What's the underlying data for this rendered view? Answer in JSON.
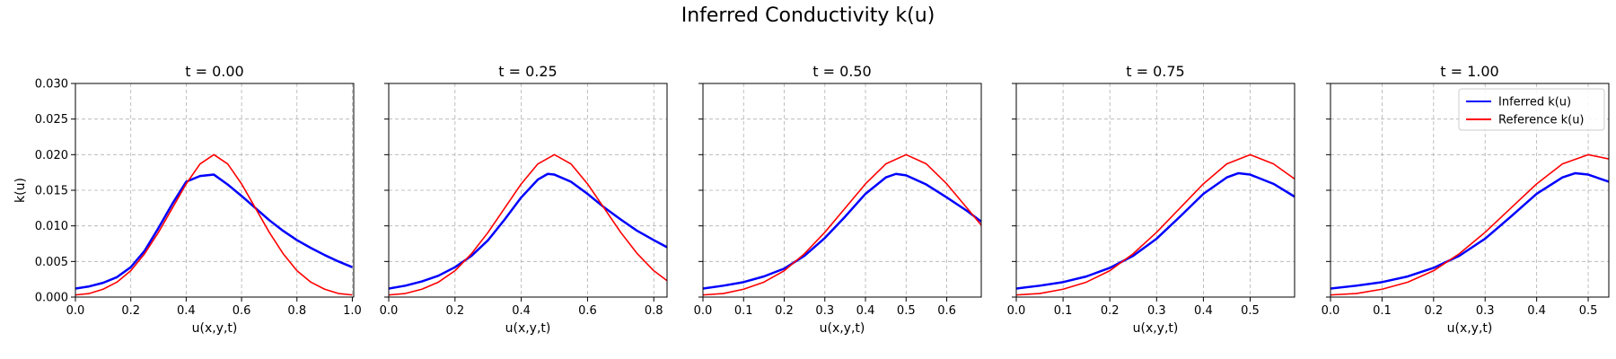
{
  "figure_title": "Inferred Conductivity k(u)",
  "colors": {
    "inferred": "#0000ff",
    "reference": "#ff0000"
  },
  "chart_data": [
    {
      "type": "line",
      "title": "t = 0.00",
      "xlabel": "u(x,y,t)",
      "ylabel": "k(u)",
      "xlim": [
        0,
        1.005
      ],
      "ylim": [
        0,
        0.03
      ],
      "xticks": [
        0,
        0.2,
        0.4,
        0.6,
        0.8,
        1.0
      ],
      "xtick_labels": [
        "0.0",
        "0.2",
        "0.4",
        "0.6",
        "0.8",
        "1.0"
      ],
      "yticks": [
        0,
        0.005,
        0.01,
        0.015,
        0.02,
        0.025,
        0.03
      ],
      "ytick_labels": [
        "0.000",
        "0.005",
        "0.010",
        "0.015",
        "0.020",
        "0.025",
        "0.030"
      ],
      "grid": true,
      "legend": null,
      "series": [
        {
          "name": "Inferred k(u)",
          "color": "#0000ff",
          "width": 2.5,
          "x": [
            0.0,
            0.05,
            0.1,
            0.15,
            0.2,
            0.25,
            0.3,
            0.35,
            0.4,
            0.45,
            0.5,
            0.55,
            0.6,
            0.65,
            0.7,
            0.75,
            0.8,
            0.85,
            0.9,
            0.95,
            1.0
          ],
          "y": [
            0.0012,
            0.0015,
            0.002,
            0.0028,
            0.0042,
            0.0065,
            0.0097,
            0.0131,
            0.0162,
            0.017,
            0.0172,
            0.0158,
            0.0142,
            0.0125,
            0.0108,
            0.0093,
            0.008,
            0.0069,
            0.0059,
            0.005,
            0.0042
          ]
        },
        {
          "name": "Reference k(u)",
          "color": "#ff0000",
          "width": 1.6,
          "x": [
            0.0,
            0.05,
            0.1,
            0.15,
            0.2,
            0.25,
            0.3,
            0.35,
            0.4,
            0.45,
            0.5,
            0.55,
            0.6,
            0.65,
            0.7,
            0.75,
            0.8,
            0.85,
            0.9,
            0.95,
            1.0
          ],
          "y": [
            0.0003,
            0.0005,
            0.0011,
            0.0021,
            0.0037,
            0.0061,
            0.0091,
            0.0125,
            0.0159,
            0.0187,
            0.02,
            0.0187,
            0.0159,
            0.0125,
            0.0091,
            0.0061,
            0.0037,
            0.0021,
            0.0011,
            0.0005,
            0.0003
          ]
        }
      ]
    },
    {
      "type": "line",
      "title": "t = 0.25",
      "xlabel": "u(x,y,t)",
      "ylabel": "",
      "xlim": [
        0,
        0.84
      ],
      "ylim": [
        0,
        0.03
      ],
      "xticks": [
        0,
        0.2,
        0.4,
        0.6,
        0.8
      ],
      "xtick_labels": [
        "0.0",
        "0.2",
        "0.4",
        "0.6",
        "0.8"
      ],
      "grid": true,
      "legend": null,
      "series": [
        {
          "name": "Inferred k(u)",
          "color": "#0000ff",
          "width": 2.5,
          "x": [
            0.0,
            0.05,
            0.1,
            0.15,
            0.2,
            0.25,
            0.3,
            0.35,
            0.4,
            0.45,
            0.48,
            0.5,
            0.55,
            0.6,
            0.65,
            0.7,
            0.75,
            0.8,
            0.84
          ],
          "y": [
            0.0012,
            0.0016,
            0.0022,
            0.003,
            0.0042,
            0.0058,
            0.008,
            0.0109,
            0.014,
            0.0165,
            0.0173,
            0.0172,
            0.0162,
            0.0145,
            0.0126,
            0.0109,
            0.0093,
            0.008,
            0.007
          ]
        },
        {
          "name": "Reference k(u)",
          "color": "#ff0000",
          "width": 1.6,
          "x": [
            0.0,
            0.05,
            0.1,
            0.15,
            0.2,
            0.25,
            0.3,
            0.35,
            0.4,
            0.45,
            0.5,
            0.55,
            0.6,
            0.65,
            0.7,
            0.75,
            0.8,
            0.84
          ],
          "y": [
            0.0003,
            0.0005,
            0.0011,
            0.0021,
            0.0037,
            0.0061,
            0.0091,
            0.0125,
            0.0159,
            0.0187,
            0.02,
            0.0187,
            0.0159,
            0.0125,
            0.0091,
            0.0061,
            0.0037,
            0.0023
          ]
        }
      ]
    },
    {
      "type": "line",
      "title": "t = 0.50",
      "xlabel": "u(x,y,t)",
      "ylabel": "",
      "xlim": [
        0,
        0.685
      ],
      "ylim": [
        0,
        0.03
      ],
      "xticks": [
        0,
        0.1,
        0.2,
        0.3,
        0.4,
        0.5,
        0.6
      ],
      "xtick_labels": [
        "0.0",
        "0.1",
        "0.2",
        "0.3",
        "0.4",
        "0.5",
        "0.6"
      ],
      "grid": true,
      "legend": null,
      "series": [
        {
          "name": "Inferred k(u)",
          "color": "#0000ff",
          "width": 2.5,
          "x": [
            0.0,
            0.05,
            0.1,
            0.15,
            0.2,
            0.25,
            0.3,
            0.35,
            0.4,
            0.45,
            0.475,
            0.5,
            0.55,
            0.6,
            0.65,
            0.685
          ],
          "y": [
            0.0012,
            0.0016,
            0.0021,
            0.0029,
            0.004,
            0.0058,
            0.0083,
            0.0113,
            0.0145,
            0.0168,
            0.0173,
            0.0171,
            0.0158,
            0.014,
            0.0121,
            0.0106
          ]
        },
        {
          "name": "Reference k(u)",
          "color": "#ff0000",
          "width": 1.6,
          "x": [
            0.0,
            0.05,
            0.1,
            0.15,
            0.2,
            0.25,
            0.3,
            0.35,
            0.4,
            0.45,
            0.5,
            0.55,
            0.6,
            0.65,
            0.685
          ],
          "y": [
            0.0003,
            0.0005,
            0.0011,
            0.0021,
            0.0037,
            0.0061,
            0.0091,
            0.0125,
            0.0159,
            0.0187,
            0.02,
            0.0187,
            0.0159,
            0.0125,
            0.0101
          ]
        }
      ]
    },
    {
      "type": "line",
      "title": "t = 0.75",
      "xlabel": "u(x,y,t)",
      "ylabel": "",
      "xlim": [
        0,
        0.595
      ],
      "ylim": [
        0,
        0.03
      ],
      "xticks": [
        0,
        0.1,
        0.2,
        0.3,
        0.4,
        0.5
      ],
      "xtick_labels": [
        "0.0",
        "0.1",
        "0.2",
        "0.3",
        "0.4",
        "0.5"
      ],
      "grid": true,
      "legend": null,
      "series": [
        {
          "name": "Inferred k(u)",
          "color": "#0000ff",
          "width": 2.5,
          "x": [
            0.0,
            0.05,
            0.1,
            0.15,
            0.2,
            0.25,
            0.3,
            0.35,
            0.4,
            0.45,
            0.475,
            0.5,
            0.55,
            0.595
          ],
          "y": [
            0.0012,
            0.0016,
            0.0021,
            0.0029,
            0.0041,
            0.0058,
            0.0082,
            0.0113,
            0.0145,
            0.0168,
            0.0174,
            0.0172,
            0.0159,
            0.0141
          ]
        },
        {
          "name": "Reference k(u)",
          "color": "#ff0000",
          "width": 1.6,
          "x": [
            0.0,
            0.05,
            0.1,
            0.15,
            0.2,
            0.25,
            0.3,
            0.35,
            0.4,
            0.45,
            0.5,
            0.55,
            0.595
          ],
          "y": [
            0.0003,
            0.0005,
            0.0011,
            0.0021,
            0.0037,
            0.0061,
            0.0091,
            0.0125,
            0.0159,
            0.0187,
            0.02,
            0.0187,
            0.0166
          ]
        }
      ]
    },
    {
      "type": "line",
      "title": "t = 1.00",
      "xlabel": "u(x,y,t)",
      "ylabel": "",
      "xlim": [
        0,
        0.54
      ],
      "ylim": [
        0,
        0.03
      ],
      "xticks": [
        0,
        0.1,
        0.2,
        0.3,
        0.4,
        0.5
      ],
      "xtick_labels": [
        "0.0",
        "0.1",
        "0.2",
        "0.3",
        "0.4",
        "0.5"
      ],
      "grid": true,
      "legend": "top-right",
      "series": [
        {
          "name": "Inferred k(u)",
          "color": "#0000ff",
          "width": 2.5,
          "x": [
            0.0,
            0.05,
            0.1,
            0.15,
            0.2,
            0.25,
            0.3,
            0.35,
            0.4,
            0.45,
            0.475,
            0.5,
            0.54
          ],
          "y": [
            0.0012,
            0.0016,
            0.0021,
            0.0029,
            0.0041,
            0.0058,
            0.0082,
            0.0113,
            0.0145,
            0.0168,
            0.0174,
            0.0172,
            0.0162
          ]
        },
        {
          "name": "Reference k(u)",
          "color": "#ff0000",
          "width": 1.6,
          "x": [
            0.0,
            0.05,
            0.1,
            0.15,
            0.2,
            0.25,
            0.3,
            0.35,
            0.4,
            0.45,
            0.5,
            0.54
          ],
          "y": [
            0.0003,
            0.0005,
            0.0011,
            0.0021,
            0.0037,
            0.0061,
            0.0091,
            0.0125,
            0.0159,
            0.0187,
            0.02,
            0.0194
          ]
        }
      ]
    }
  ]
}
